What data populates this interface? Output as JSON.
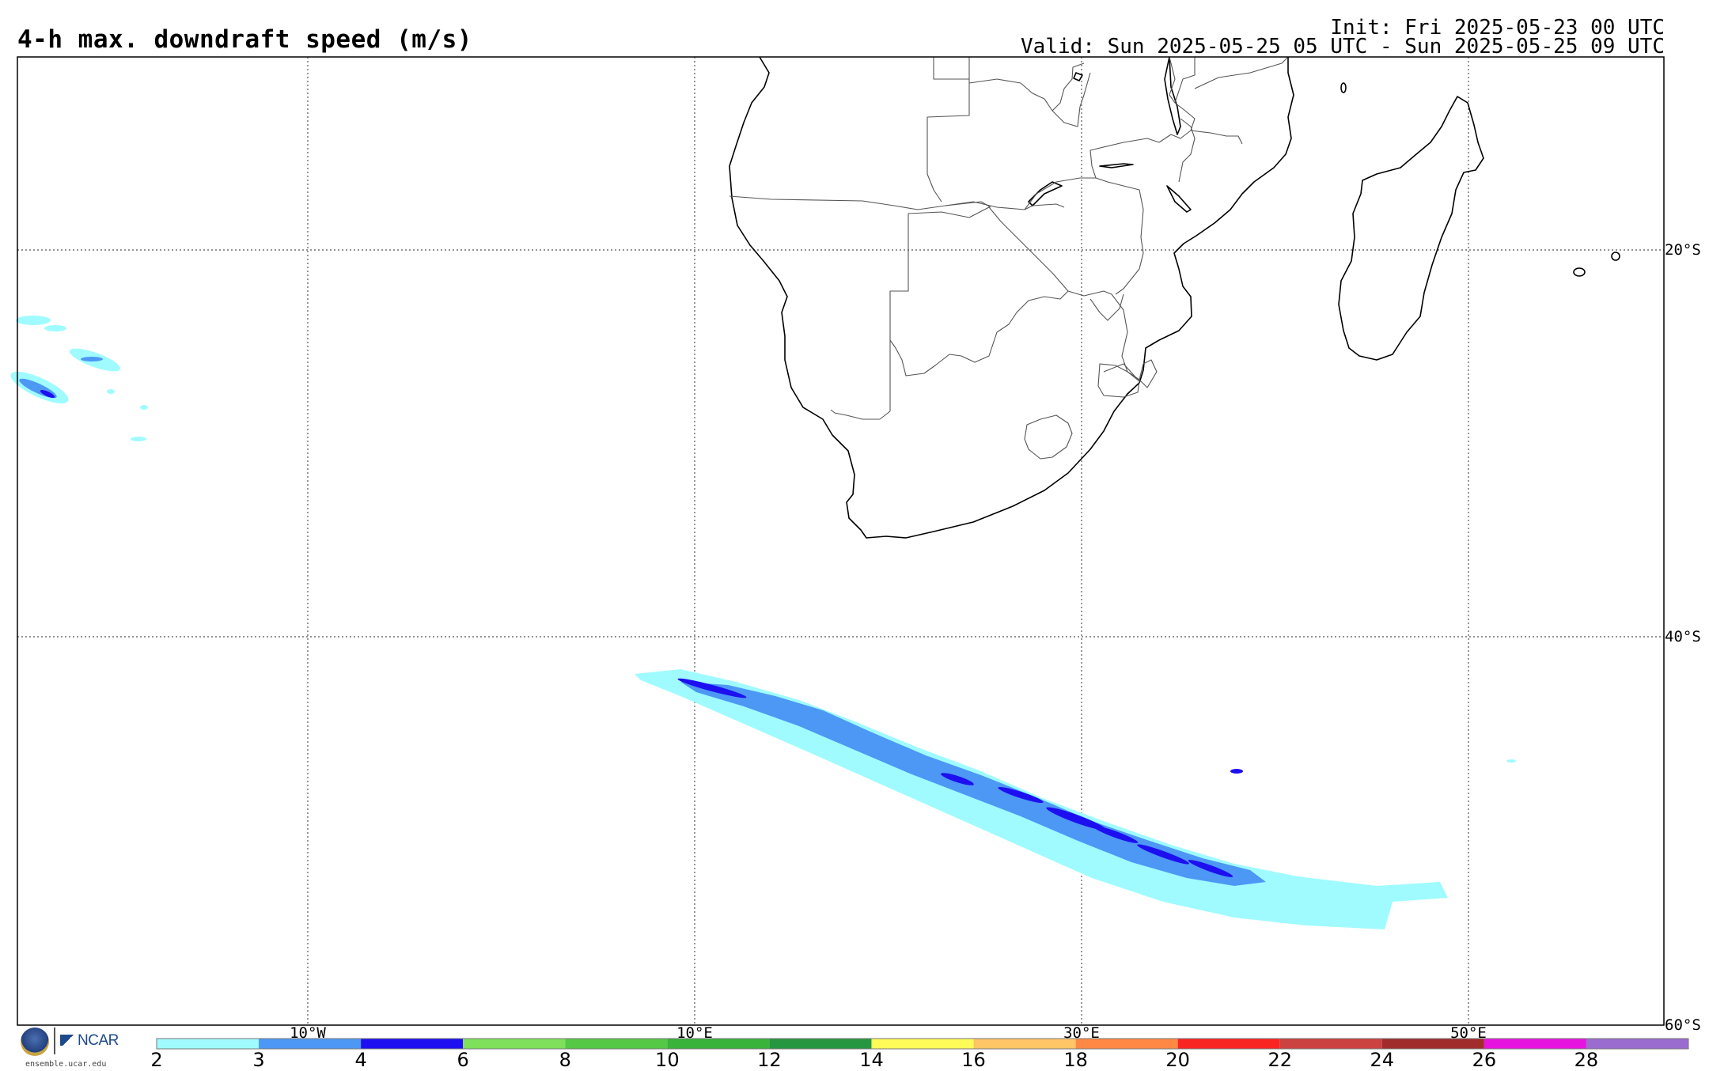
{
  "header": {
    "title": "4-h max. downdraft speed (m/s)",
    "init": "Init: Fri 2025-05-23 00 UTC",
    "valid": "Valid: Sun 2025-05-25 05 UTC - Sun 2025-05-25 09 UTC"
  },
  "map": {
    "lat_labels": [
      "20°S",
      "40°S",
      "60°S"
    ],
    "lon_labels": [
      "10°W",
      "10°E",
      "30°E",
      "50°E"
    ]
  },
  "colorbar": {
    "ticks": [
      "2",
      "3",
      "4",
      "6",
      "8",
      "10",
      "12",
      "14",
      "16",
      "18",
      "20",
      "22",
      "24",
      "26",
      "28"
    ],
    "colors": [
      "#9ffbff",
      "#4d97f5",
      "#1d0fef",
      "#7fe05b",
      "#55c846",
      "#3ab33b",
      "#269641",
      "#fffb59",
      "#ffc566",
      "#ff8844",
      "#f92523",
      "#cc4240",
      "#a02c2c",
      "#e714e0",
      "#9a6ccf"
    ]
  },
  "logo": {
    "org": "NCAR",
    "url": "ensemble.ucar.edu"
  }
}
